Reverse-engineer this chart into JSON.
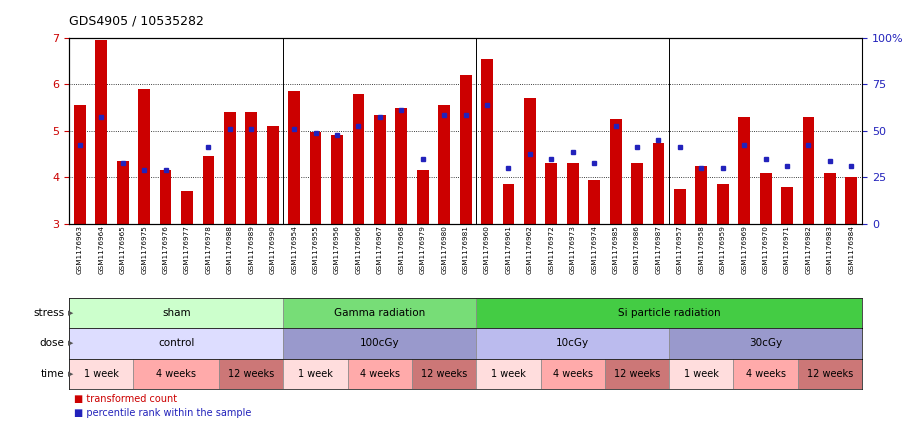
{
  "title": "GDS4905 / 10535282",
  "samples": [
    "GSM1176963",
    "GSM1176964",
    "GSM1176965",
    "GSM1176975",
    "GSM1176976",
    "GSM1176977",
    "GSM1176978",
    "GSM1176988",
    "GSM1176989",
    "GSM1176990",
    "GSM1176954",
    "GSM1176955",
    "GSM1176956",
    "GSM1176966",
    "GSM1176967",
    "GSM1176968",
    "GSM1176979",
    "GSM1176980",
    "GSM1176981",
    "GSM1176960",
    "GSM1176961",
    "GSM1176962",
    "GSM1176972",
    "GSM1176973",
    "GSM1176974",
    "GSM1176985",
    "GSM1176986",
    "GSM1176987",
    "GSM1176957",
    "GSM1176958",
    "GSM1176959",
    "GSM1176969",
    "GSM1176970",
    "GSM1176971",
    "GSM1176982",
    "GSM1176983",
    "GSM1176984"
  ],
  "bar_values": [
    5.55,
    6.95,
    4.35,
    5.9,
    4.15,
    3.7,
    4.45,
    5.4,
    5.4,
    5.1,
    5.85,
    4.97,
    4.92,
    5.8,
    5.35,
    5.5,
    4.15,
    5.55,
    6.2,
    6.55,
    3.85,
    5.7,
    4.3,
    4.3,
    3.95,
    5.25,
    4.3,
    4.75,
    3.75,
    4.25,
    3.85,
    5.3,
    4.1,
    3.8,
    5.3,
    4.1,
    4.0
  ],
  "blue_values": [
    4.7,
    5.3,
    4.3,
    4.15,
    4.15,
    null,
    4.65,
    5.05,
    5.05,
    null,
    5.05,
    4.95,
    4.92,
    5.1,
    5.3,
    5.45,
    4.4,
    5.35,
    5.35,
    5.55,
    4.2,
    4.5,
    4.4,
    4.55,
    4.3,
    5.1,
    4.65,
    4.8,
    4.65,
    4.2,
    4.2,
    4.7,
    4.4,
    4.25,
    4.7,
    4.35,
    4.25
  ],
  "ylim_left": [
    3,
    7
  ],
  "ylim_right": [
    0,
    100
  ],
  "yticks_left": [
    3,
    4,
    5,
    6,
    7
  ],
  "yticks_right": [
    0,
    25,
    50,
    75,
    100
  ],
  "bar_color": "#cc0000",
  "blue_color": "#2222bb",
  "bar_bottom": 3.0,
  "stress_groups": [
    {
      "label": "sham",
      "start": 0,
      "end": 10,
      "color": "#ccffcc"
    },
    {
      "label": "Gamma radiation",
      "start": 10,
      "end": 19,
      "color": "#77dd77"
    },
    {
      "label": "Si particle radiation",
      "start": 19,
      "end": 37,
      "color": "#44cc44"
    }
  ],
  "dose_groups": [
    {
      "label": "control",
      "start": 0,
      "end": 10,
      "color": "#ddddff"
    },
    {
      "label": "100cGy",
      "start": 10,
      "end": 19,
      "color": "#9999cc"
    },
    {
      "label": "10cGy",
      "start": 19,
      "end": 28,
      "color": "#bbbbee"
    },
    {
      "label": "30cGy",
      "start": 28,
      "end": 37,
      "color": "#9999cc"
    }
  ],
  "time_groups": [
    {
      "label": "1 week",
      "start": 0,
      "end": 3,
      "color": "#ffdddd"
    },
    {
      "label": "4 weeks",
      "start": 3,
      "end": 7,
      "color": "#ffaaaa"
    },
    {
      "label": "12 weeks",
      "start": 7,
      "end": 10,
      "color": "#cc7777"
    },
    {
      "label": "1 week",
      "start": 10,
      "end": 13,
      "color": "#ffdddd"
    },
    {
      "label": "4 weeks",
      "start": 13,
      "end": 16,
      "color": "#ffaaaa"
    },
    {
      "label": "12 weeks",
      "start": 16,
      "end": 19,
      "color": "#cc7777"
    },
    {
      "label": "1 week",
      "start": 19,
      "end": 22,
      "color": "#ffdddd"
    },
    {
      "label": "4 weeks",
      "start": 22,
      "end": 25,
      "color": "#ffaaaa"
    },
    {
      "label": "12 weeks",
      "start": 25,
      "end": 28,
      "color": "#cc7777"
    },
    {
      "label": "1 week",
      "start": 28,
      "end": 31,
      "color": "#ffdddd"
    },
    {
      "label": "4 weeks",
      "start": 31,
      "end": 34,
      "color": "#ffaaaa"
    },
    {
      "label": "12 weeks",
      "start": 34,
      "end": 37,
      "color": "#cc7777"
    }
  ],
  "row_labels": [
    "stress",
    "dose",
    "time"
  ],
  "legend_items": [
    {
      "label": "transformed count",
      "color": "#cc0000"
    },
    {
      "label": "percentile rank within the sample",
      "color": "#2222bb"
    }
  ]
}
